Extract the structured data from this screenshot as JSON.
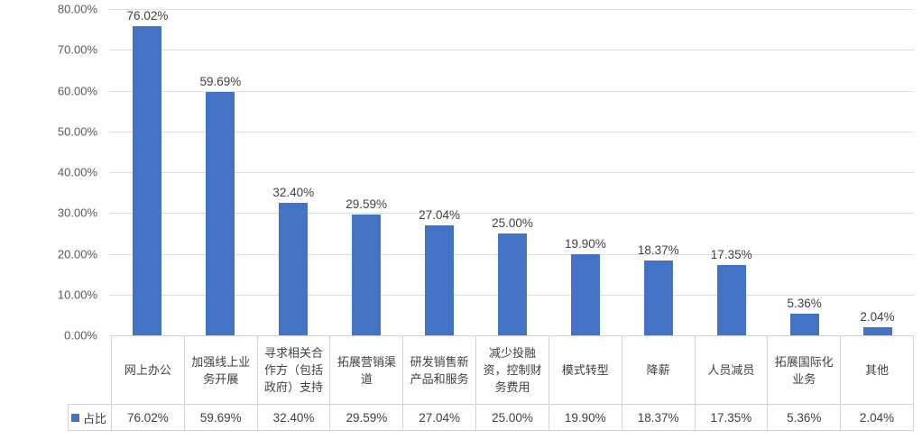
{
  "chart_data": {
    "type": "bar",
    "title": "",
    "xlabel": "",
    "ylabel": "",
    "categories": [
      "网上办公",
      "加强线上业务开展",
      "寻求相关合作方（包括政府）支持",
      "拓展营销渠道",
      "研发销售新产品和服务",
      "减少投融资，控制财务费用",
      "模式转型",
      "降薪",
      "人员减员",
      "拓展国际化业务",
      "其他"
    ],
    "series": [
      {
        "name": "占比",
        "values": [
          76.02,
          59.69,
          32.4,
          29.59,
          27.04,
          25.0,
          19.9,
          18.37,
          17.35,
          5.36,
          2.04
        ]
      }
    ],
    "value_labels": [
      "76.02%",
      "59.69%",
      "32.40%",
      "29.59%",
      "27.04%",
      "25.00%",
      "19.90%",
      "18.37%",
      "17.35%",
      "5.36%",
      "2.04%"
    ],
    "y_ticks": [
      "0.00%",
      "10.00%",
      "20.00%",
      "30.00%",
      "40.00%",
      "50.00%",
      "60.00%",
      "70.00%",
      "80.00%"
    ],
    "ylim": [
      0,
      80
    ],
    "grid": true,
    "legend_position": "bottom-left-of-data-table",
    "data_table_shown": true,
    "bar_color": "#4472C4",
    "gridline_color": "#dedede",
    "axis_text_color": "#595959",
    "label_text_color": "#404040"
  }
}
